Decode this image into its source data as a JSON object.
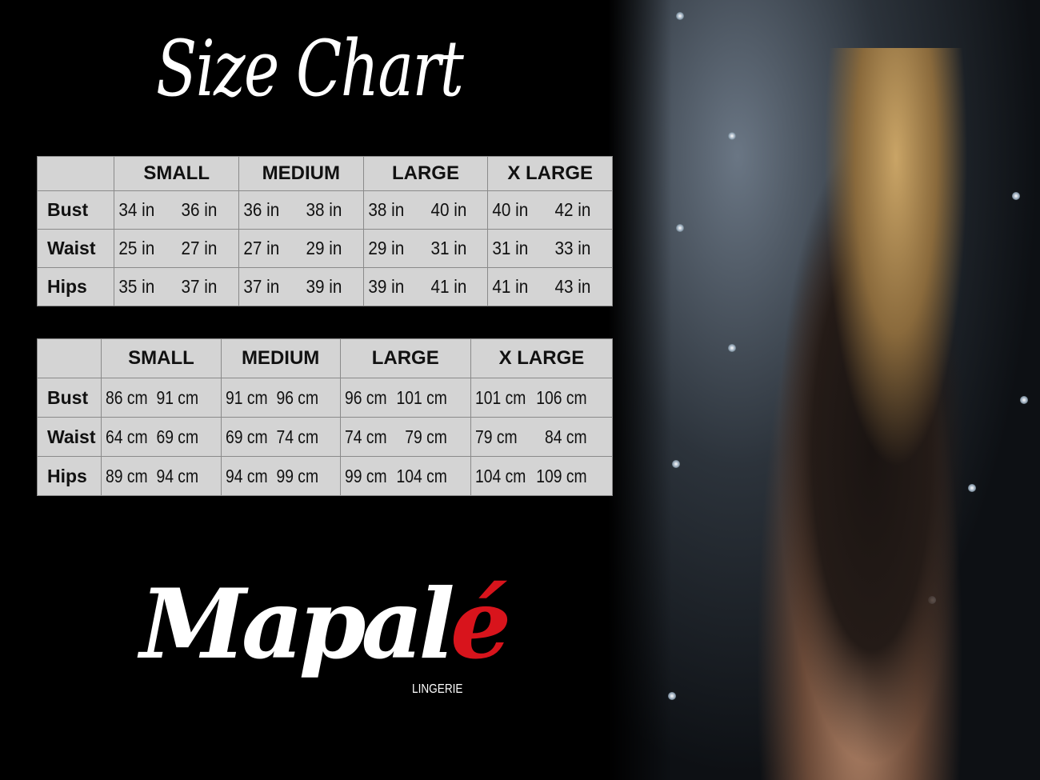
{
  "title": "Size Chart",
  "brand": {
    "logo_text": "Mapalé",
    "logo_main": "Mapal",
    "logo_accent": "é",
    "tagline": "LINGERIE",
    "accent_color": "#d8141c"
  },
  "sizes": [
    "SMALL",
    "MEDIUM",
    "LARGE",
    "X LARGE"
  ],
  "tables": [
    {
      "unit": "in",
      "rows": [
        {
          "label": "Bust",
          "values": [
            [
              "34 in",
              "36 in"
            ],
            [
              "36 in",
              "38 in"
            ],
            [
              "38 in",
              "40 in"
            ],
            [
              "40 in",
              "42 in"
            ]
          ]
        },
        {
          "label": "Waist",
          "values": [
            [
              "25 in",
              "27 in"
            ],
            [
              "27 in",
              "29 in"
            ],
            [
              "29 in",
              "31 in"
            ],
            [
              "31 in",
              "33 in"
            ]
          ]
        },
        {
          "label": "Hips",
          "values": [
            [
              "35 in",
              "37 in"
            ],
            [
              "37 in",
              "39 in"
            ],
            [
              "39 in",
              "41 in"
            ],
            [
              "41 in",
              "43 in"
            ]
          ]
        }
      ]
    },
    {
      "unit": "cm",
      "rows": [
        {
          "label": "Bust",
          "values": [
            [
              "86 cm",
              "91 cm"
            ],
            [
              "91 cm",
              "96 cm"
            ],
            [
              "96 cm",
              "101 cm"
            ],
            [
              "101 cm",
              "106 cm"
            ]
          ]
        },
        {
          "label": "Waist",
          "values": [
            [
              "64 cm",
              "69 cm"
            ],
            [
              "69 cm",
              "74 cm"
            ],
            [
              "74 cm",
              "79 cm"
            ],
            [
              "79 cm",
              "84 cm"
            ]
          ]
        },
        {
          "label": "Hips",
          "values": [
            [
              "89 cm",
              "94 cm"
            ],
            [
              "94 cm",
              "99 cm"
            ],
            [
              "99 cm",
              "104 cm"
            ],
            [
              "104 cm",
              "109 cm"
            ]
          ]
        }
      ]
    }
  ]
}
